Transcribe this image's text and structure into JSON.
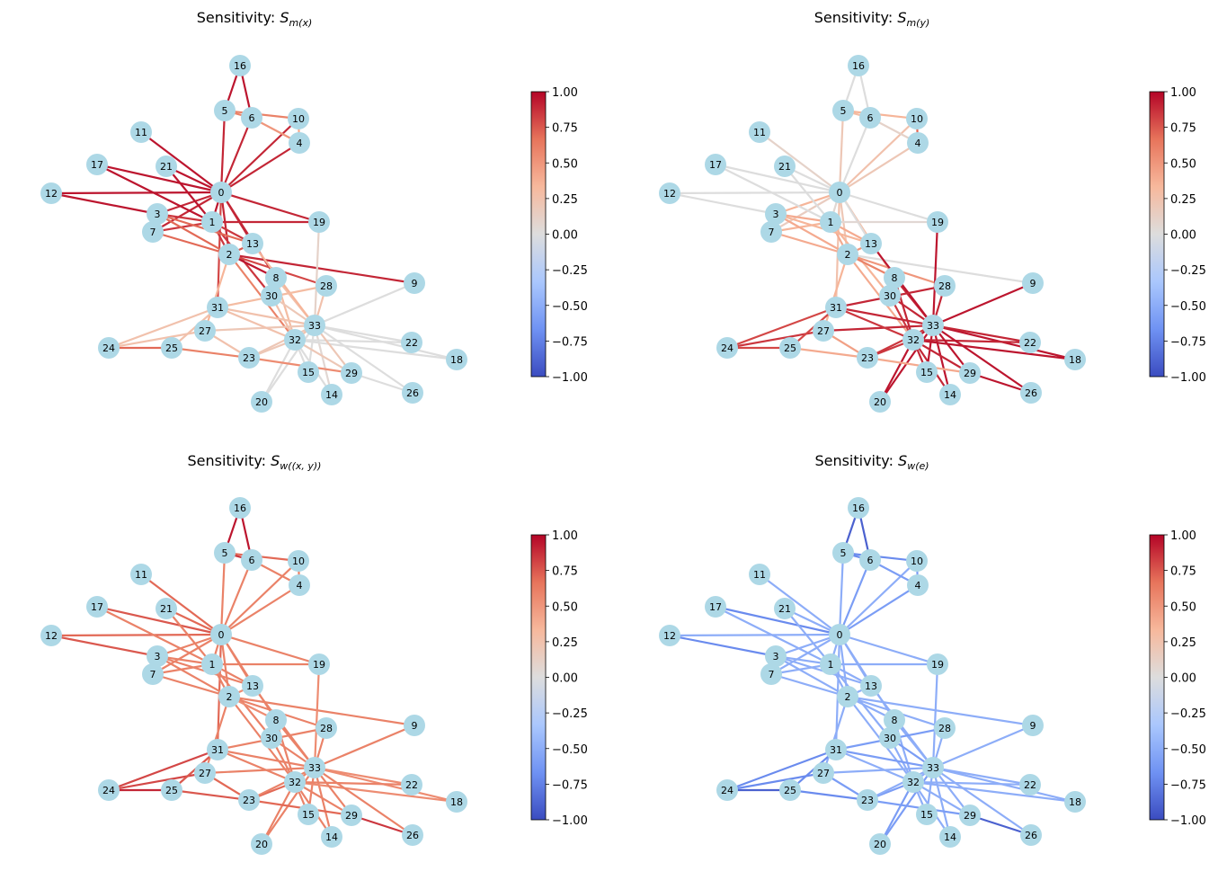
{
  "figure": {
    "panels": [
      {
        "title_prefix": "Sensitivity: ",
        "symbol": "S",
        "subscript": "m(x)"
      },
      {
        "title_prefix": "Sensitivity: ",
        "symbol": "S",
        "subscript": "m(y)"
      },
      {
        "title_prefix": "Sensitivity: ",
        "symbol": "S",
        "subscript": "w((x, y))"
      },
      {
        "title_prefix": "Sensitivity: ",
        "symbol": "S",
        "subscript": "w(e)"
      }
    ],
    "colorbar": {
      "min": -1.0,
      "max": 1.0,
      "ticks": [
        "1.00",
        "0.75",
        "0.50",
        "0.25",
        "0.00",
        "−0.25",
        "−0.50",
        "−0.75",
        "−1.00"
      ],
      "colormap": "coolwarm",
      "stops": [
        "#3b4cc0",
        "#6f92f3",
        "#aac7fd",
        "#dddddd",
        "#f7b89c",
        "#e7745b",
        "#b40426"
      ]
    },
    "node_color": "#add8e6",
    "nodes": [
      "0",
      "1",
      "2",
      "3",
      "4",
      "5",
      "6",
      "7",
      "8",
      "9",
      "10",
      "11",
      "12",
      "13",
      "14",
      "15",
      "16",
      "17",
      "18",
      "19",
      "20",
      "21",
      "22",
      "23",
      "24",
      "25",
      "26",
      "27",
      "28",
      "29",
      "30",
      "31",
      "32",
      "33"
    ],
    "edges": [
      [
        0,
        1
      ],
      [
        0,
        2
      ],
      [
        0,
        3
      ],
      [
        0,
        4
      ],
      [
        0,
        5
      ],
      [
        0,
        6
      ],
      [
        0,
        7
      ],
      [
        0,
        8
      ],
      [
        0,
        10
      ],
      [
        0,
        11
      ],
      [
        0,
        12
      ],
      [
        0,
        13
      ],
      [
        0,
        17
      ],
      [
        0,
        19
      ],
      [
        0,
        21
      ],
      [
        0,
        31
      ],
      [
        1,
        2
      ],
      [
        1,
        3
      ],
      [
        1,
        7
      ],
      [
        1,
        13
      ],
      [
        1,
        17
      ],
      [
        1,
        19
      ],
      [
        1,
        21
      ],
      [
        1,
        30
      ],
      [
        2,
        3
      ],
      [
        2,
        7
      ],
      [
        2,
        8
      ],
      [
        2,
        9
      ],
      [
        2,
        13
      ],
      [
        2,
        27
      ],
      [
        2,
        28
      ],
      [
        2,
        32
      ],
      [
        3,
        7
      ],
      [
        3,
        12
      ],
      [
        3,
        13
      ],
      [
        4,
        6
      ],
      [
        4,
        10
      ],
      [
        5,
        6
      ],
      [
        5,
        10
      ],
      [
        5,
        16
      ],
      [
        6,
        16
      ],
      [
        8,
        30
      ],
      [
        8,
        32
      ],
      [
        8,
        33
      ],
      [
        9,
        33
      ],
      [
        13,
        33
      ],
      [
        14,
        32
      ],
      [
        14,
        33
      ],
      [
        15,
        32
      ],
      [
        15,
        33
      ],
      [
        18,
        32
      ],
      [
        18,
        33
      ],
      [
        19,
        33
      ],
      [
        20,
        32
      ],
      [
        20,
        33
      ],
      [
        22,
        32
      ],
      [
        22,
        33
      ],
      [
        23,
        25
      ],
      [
        23,
        27
      ],
      [
        23,
        29
      ],
      [
        23,
        32
      ],
      [
        23,
        33
      ],
      [
        24,
        25
      ],
      [
        24,
        27
      ],
      [
        24,
        31
      ],
      [
        25,
        31
      ],
      [
        26,
        29
      ],
      [
        26,
        33
      ],
      [
        27,
        33
      ],
      [
        28,
        31
      ],
      [
        28,
        33
      ],
      [
        29,
        32
      ],
      [
        29,
        33
      ],
      [
        30,
        32
      ],
      [
        30,
        33
      ],
      [
        31,
        32
      ],
      [
        31,
        33
      ],
      [
        32,
        33
      ]
    ],
    "edge_values": [
      [
        0.95,
        0.9,
        0.9,
        0.9,
        0.9,
        0.9,
        0.9,
        0.9,
        0.9,
        0.95,
        0.95,
        0.9,
        0.95,
        0.9,
        0.95,
        0.8,
        0.85,
        0.85,
        0.85,
        0.85,
        0.95,
        0.9,
        0.95,
        0.85,
        0.7,
        0.7,
        0.95,
        0.9,
        0.75,
        0.35,
        0.8,
        0.6,
        0.7,
        0.95,
        0.7,
        0.5,
        0.4,
        0.6,
        0.6,
        0.95,
        0.95,
        0.6,
        0.3,
        0.25,
        0.0,
        0.35,
        0.0,
        0.05,
        0.0,
        0.0,
        0.0,
        0.0,
        0.1,
        0.0,
        0.0,
        0.0,
        0.0,
        0.6,
        0.25,
        0.55,
        0.2,
        0.2,
        0.7,
        0.25,
        0.25,
        0.25,
        0.0,
        0.0,
        0.2,
        0.3,
        0.25,
        0.2,
        0.2,
        0.25,
        0.2,
        0.25,
        0.25,
        0.25
      ],
      [
        0.05,
        0.2,
        0.35,
        0.2,
        0.2,
        0.0,
        0.15,
        0.3,
        0.25,
        0.1,
        0.0,
        0.0,
        0.0,
        0.0,
        0.0,
        0.25,
        0.4,
        0.4,
        0.35,
        0.4,
        0.0,
        0.05,
        0.0,
        0.35,
        0.4,
        0.4,
        0.6,
        0.0,
        0.5,
        0.35,
        0.5,
        0.4,
        0.35,
        0.0,
        0.35,
        0.1,
        0.7,
        0.3,
        0.35,
        0.0,
        0.0,
        0.9,
        0.9,
        0.9,
        0.95,
        0.95,
        0.9,
        0.95,
        0.9,
        0.95,
        0.95,
        0.95,
        0.95,
        0.95,
        0.95,
        0.9,
        0.9,
        0.4,
        0.45,
        0.4,
        0.85,
        0.85,
        0.8,
        0.85,
        0.8,
        0.8,
        0.95,
        0.95,
        0.9,
        0.9,
        0.9,
        0.9,
        0.95,
        0.85,
        0.9,
        0.85,
        0.9,
        0.95
      ],
      [
        0.6,
        0.6,
        0.6,
        0.6,
        0.6,
        0.6,
        0.6,
        0.6,
        0.6,
        0.7,
        0.7,
        0.6,
        0.75,
        0.6,
        0.7,
        0.7,
        0.6,
        0.6,
        0.6,
        0.6,
        0.6,
        0.6,
        0.6,
        0.6,
        0.6,
        0.6,
        0.55,
        0.6,
        0.55,
        0.6,
        0.6,
        0.6,
        0.6,
        0.75,
        0.6,
        0.6,
        0.6,
        0.85,
        0.7,
        0.95,
        0.95,
        0.6,
        0.6,
        0.6,
        0.6,
        0.6,
        0.6,
        0.6,
        0.6,
        0.6,
        0.55,
        0.55,
        0.55,
        0.6,
        0.6,
        0.6,
        0.55,
        0.75,
        0.7,
        0.7,
        0.7,
        0.6,
        0.9,
        0.8,
        0.8,
        0.75,
        0.85,
        0.6,
        0.6,
        0.6,
        0.6,
        0.6,
        0.6,
        0.6,
        0.6,
        0.6,
        0.6,
        0.6
      ],
      [
        -0.5,
        -0.5,
        -0.5,
        -0.6,
        -0.5,
        -0.6,
        -0.5,
        -0.5,
        -0.5,
        -0.5,
        -0.5,
        -0.5,
        -0.7,
        -0.5,
        -0.5,
        -0.5,
        -0.5,
        -0.5,
        -0.5,
        -0.5,
        -0.5,
        -0.5,
        -0.5,
        -0.5,
        -0.5,
        -0.5,
        -0.5,
        -0.5,
        -0.5,
        -0.5,
        -0.5,
        -0.5,
        -0.5,
        -0.7,
        -0.5,
        -0.6,
        -0.6,
        -0.7,
        -0.7,
        -0.9,
        -0.9,
        -0.5,
        -0.5,
        -0.5,
        -0.5,
        -0.5,
        -0.5,
        -0.5,
        -0.5,
        -0.5,
        -0.5,
        -0.5,
        -0.5,
        -0.6,
        -0.6,
        -0.5,
        -0.5,
        -0.7,
        -0.6,
        -0.6,
        -0.6,
        -0.5,
        -0.9,
        -0.7,
        -0.7,
        -0.7,
        -0.9,
        -0.5,
        -0.5,
        -0.6,
        -0.5,
        -0.5,
        -0.5,
        -0.5,
        -0.6,
        -0.5,
        -0.6,
        -0.5
      ]
    ]
  }
}
